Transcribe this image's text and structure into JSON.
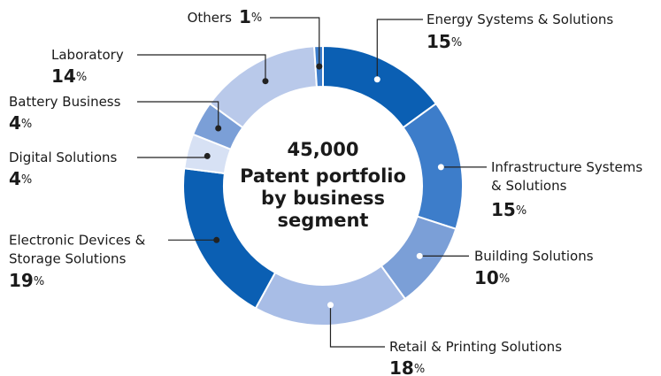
{
  "chart_data": {
    "type": "donut",
    "center_value": "45,000",
    "center_label": "Patent portfolio\nby business\nsegment",
    "categories": [
      "Energy Systems & Solutions",
      "Infrastructure Systems\n& Solutions",
      "Building Solutions",
      "Retail & Printing Solutions",
      "Electronic Devices &\nStorage Solutions",
      "Digital Solutions",
      "Battery Business",
      "Laboratory",
      "Others"
    ],
    "values": [
      15,
      15,
      10,
      18,
      19,
      4,
      4,
      14,
      1
    ],
    "value_labels": [
      "15%",
      "15%",
      "10%",
      "18%",
      "19%",
      "4%",
      "4%",
      "14%",
      "1%"
    ],
    "colors": [
      "#0b5fb3",
      "#3d7dca",
      "#7b9fd7",
      "#a8bde6",
      "#0b5fb3",
      "#d7e1f4",
      "#7b9fd7",
      "#b9c9ea",
      "#3d7dca"
    ]
  }
}
